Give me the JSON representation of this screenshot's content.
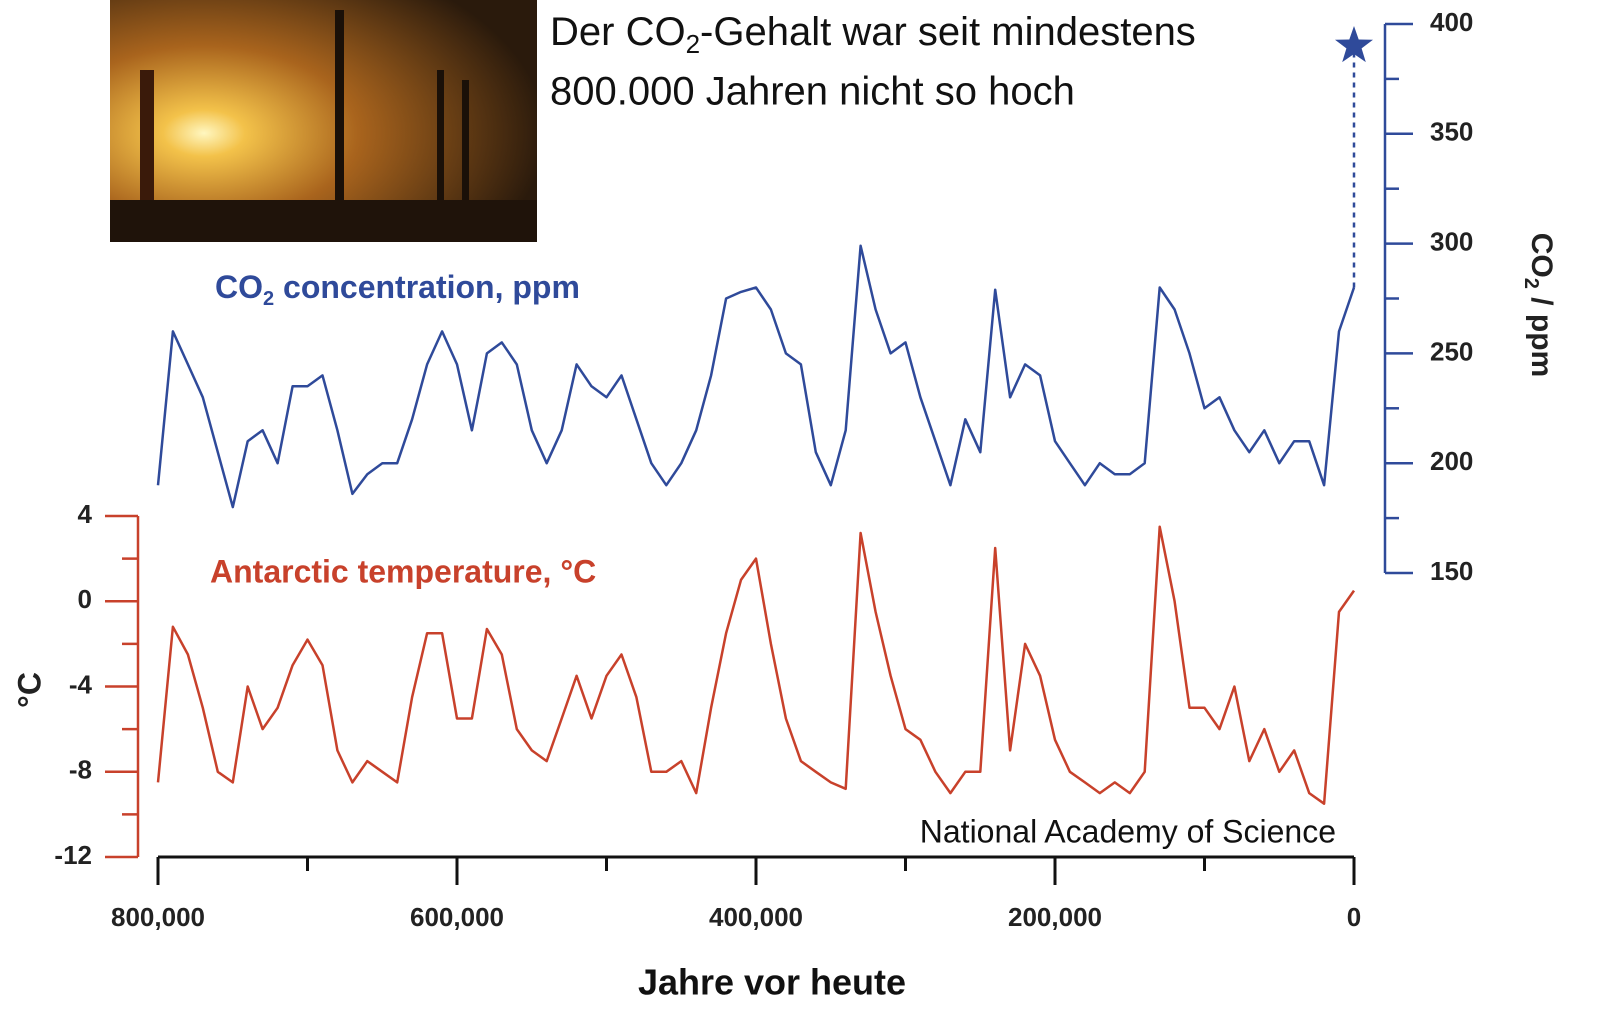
{
  "chart_data": {
    "type": "line",
    "headline": [
      "Der CO",
      "2",
      "-Gehalt war seit mindestens",
      "800.000 Jahren nicht so hoch"
    ],
    "xlabel": "Jahre vor heute",
    "ylabel": "°C",
    "y2label": [
      "CO",
      "2",
      " / ppm"
    ],
    "credit": "National Academy of Science",
    "x": [
      800000,
      790000,
      780000,
      770000,
      760000,
      750000,
      740000,
      730000,
      720000,
      710000,
      700000,
      690000,
      680000,
      670000,
      660000,
      650000,
      640000,
      630000,
      620000,
      610000,
      600000,
      590000,
      580000,
      570000,
      560000,
      550000,
      540000,
      530000,
      520000,
      510000,
      500000,
      490000,
      480000,
      470000,
      460000,
      450000,
      440000,
      430000,
      420000,
      410000,
      400000,
      390000,
      380000,
      370000,
      360000,
      350000,
      340000,
      330000,
      320000,
      310000,
      300000,
      290000,
      280000,
      270000,
      260000,
      250000,
      240000,
      230000,
      220000,
      210000,
      200000,
      190000,
      180000,
      170000,
      160000,
      150000,
      140000,
      130000,
      120000,
      110000,
      100000,
      90000,
      80000,
      70000,
      60000,
      50000,
      40000,
      30000,
      20000,
      10000,
      0
    ],
    "series": [
      {
        "name": [
          "CO",
          "2",
          " concentration, ppm"
        ],
        "color": "#2f4a9a",
        "axis": "y2",
        "values": [
          190,
          260,
          245,
          230,
          205,
          180,
          210,
          215,
          200,
          235,
          235,
          240,
          215,
          186,
          195,
          200,
          200,
          220,
          245,
          260,
          245,
          215,
          250,
          255,
          245,
          215,
          200,
          215,
          245,
          235,
          230,
          240,
          220,
          200,
          190,
          200,
          215,
          240,
          275,
          278,
          280,
          270,
          250,
          245,
          205,
          190,
          215,
          299,
          270,
          250,
          255,
          230,
          210,
          190,
          220,
          205,
          279,
          230,
          245,
          240,
          210,
          200,
          190,
          200,
          195,
          195,
          200,
          280,
          270,
          250,
          225,
          230,
          215,
          205,
          215,
          200,
          210,
          210,
          190,
          260,
          280
        ]
      },
      {
        "name": "Antarctic temperature, °C",
        "color": "#c8412b",
        "axis": "y",
        "values": [
          -8.5,
          -1.2,
          -2.5,
          -5,
          -8,
          -8.5,
          -4,
          -6,
          -5,
          -3,
          -1.8,
          -3,
          -7,
          -8.5,
          -7.5,
          -8,
          -8.5,
          -4.5,
          -1.5,
          -1.5,
          -5.5,
          -5.5,
          -1.3,
          -2.5,
          -6,
          -7,
          -7.5,
          -5.5,
          -3.5,
          -5.5,
          -3.5,
          -2.5,
          -4.5,
          -8,
          -8,
          -7.5,
          -9,
          -5,
          -1.5,
          1,
          2,
          -2,
          -5.5,
          -7.5,
          -8,
          -8.5,
          -8.8,
          3.2,
          -0.5,
          -3.5,
          -6,
          -6.5,
          -8,
          -9,
          -8,
          -8,
          2.5,
          -7,
          -2,
          -3.5,
          -6.5,
          -8,
          -8.5,
          -9,
          -8.5,
          -9,
          -8,
          3.5,
          0,
          -5,
          -5,
          -6,
          -4,
          -7.5,
          -6,
          -8,
          -7,
          -9,
          -9.5,
          -0.5,
          0.5
        ]
      }
    ],
    "current_co2": 390,
    "xlim": [
      800000,
      0
    ],
    "xticks": [
      {
        "value": 800000,
        "label": "800,000"
      },
      {
        "value": 600000,
        "label": "600,000"
      },
      {
        "value": 400000,
        "label": "400,000"
      },
      {
        "value": 200000,
        "label": "200,000"
      },
      0
    ],
    "xminor": [
      700000,
      500000,
      300000,
      100000
    ],
    "ylim": [
      -12,
      4
    ],
    "yticks": [
      4,
      0,
      -4,
      -8,
      -12
    ],
    "yminor": [
      2,
      -2,
      -6,
      -10
    ],
    "y2lim": [
      150,
      400
    ],
    "y2ticks": [
      400,
      350,
      300,
      250,
      200,
      150
    ],
    "y2minor": [
      375,
      325,
      275,
      225,
      175
    ]
  }
}
